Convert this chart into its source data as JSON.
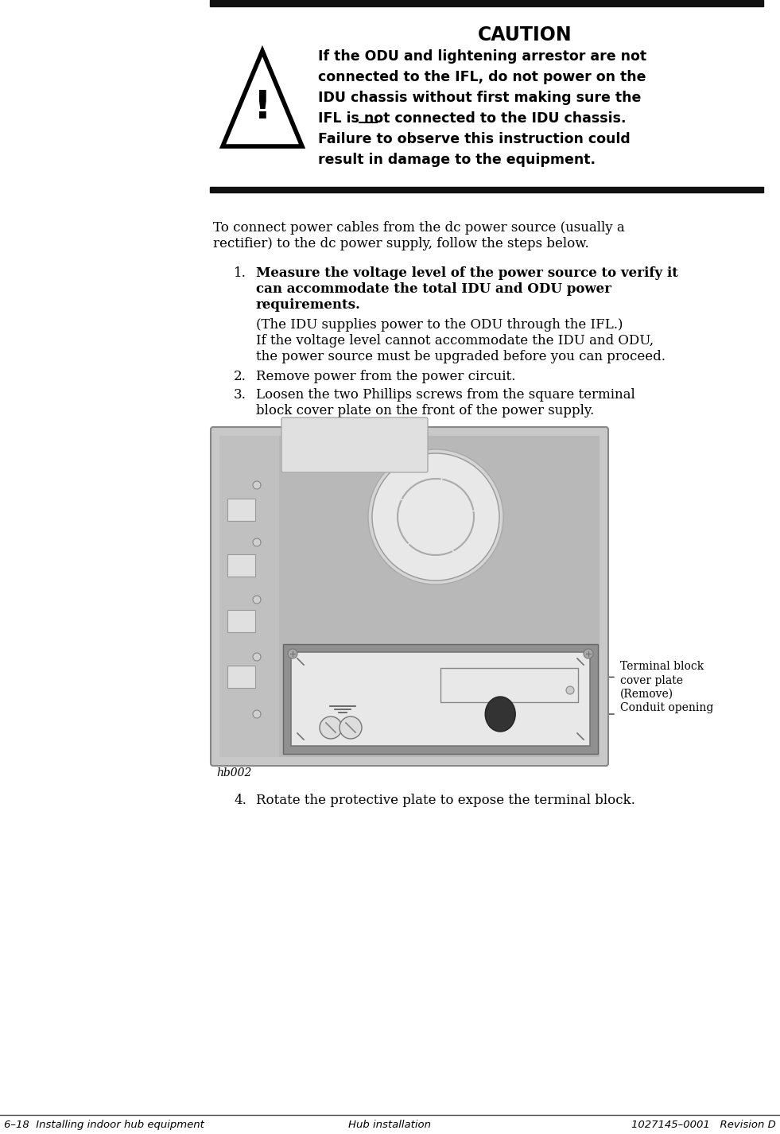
{
  "page_width": 9.81,
  "page_height": 14.26,
  "bg_color": "#ffffff",
  "footer_left": "6–18  Installing indoor hub equipment",
  "footer_center": "Hub installation",
  "footer_right": "1027145–0001   Revision D",
  "caution_lines": [
    "If the ODU and lightening arrestor are not",
    "connected to the IFL, do not power on the",
    "IDU chassis without first making sure the",
    "IFL is not connected to the IDU chassis.",
    "Failure to observe this instruction could",
    "result in damage to the equipment."
  ],
  "intro_text1": "To connect power cables from the dc power source (usually a",
  "intro_text2": "rectifier) to the dc power supply, follow the steps below.",
  "step1_bold1": "Measure the voltage level of the power source to verify it",
  "step1_bold2": "can accommodate the total IDU and ODU power",
  "step1_bold3": "requirements.",
  "step1_norm1": "(The IDU supplies power to the ODU through the IFL.)",
  "step1_norm2": "If the voltage level cannot accommodate the IDU and ODU,",
  "step1_norm3": "the power source must be upgraded before you can proceed.",
  "step2_text": "Remove power from the power circuit.",
  "step3_text1": "Loosen the two Phillips screws from the square terminal",
  "step3_text2": "block cover plate on the front of the power supply.",
  "step4_text": "Rotate the protective plate to expose the terminal block.",
  "ann1": "Terminal block\ncover plate\n(Remove)",
  "ann2": "Conduit opening",
  "img_label": "hb002"
}
